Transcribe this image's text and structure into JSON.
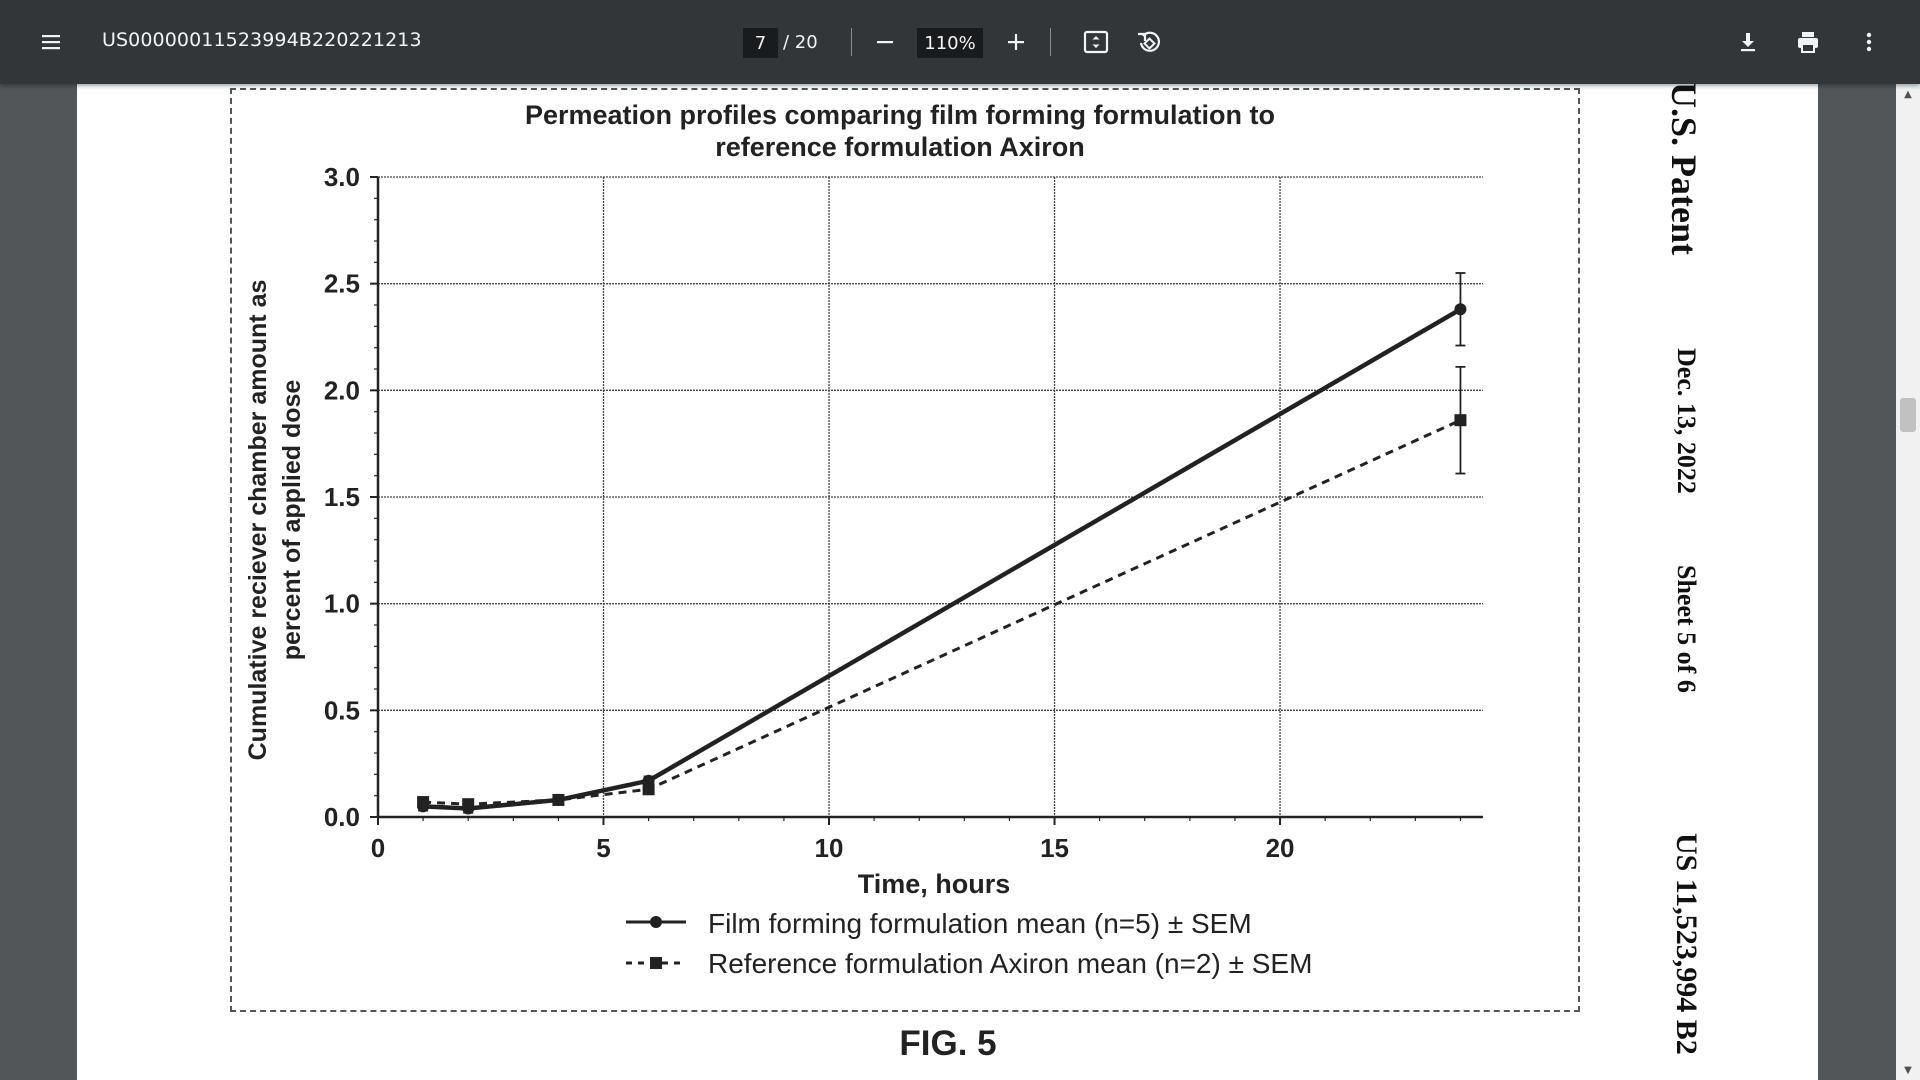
{
  "toolbar": {
    "title": "US00000011523994B220221213",
    "page_current": "7",
    "page_total": "/ 20",
    "zoom": "110%",
    "icons": [
      "menu-icon",
      "minus-icon",
      "plus-icon",
      "fit-page-icon",
      "rotate-icon",
      "download-icon",
      "print-icon",
      "more-vert-icon"
    ]
  },
  "patent_header": {
    "label": "U.S. Patent",
    "date": "Dec. 13, 2022",
    "sheet": "Sheet 5 of 6",
    "number": "US 11,523,994 B2"
  },
  "figure": {
    "caption": "FIG. 5"
  },
  "chart_data": {
    "type": "line",
    "title": "Permeation profiles comparing film forming formulation to reference formulation Axiron",
    "title_lines": [
      "Permeation profiles comparing film forming formulation to",
      "reference formulation Axiron"
    ],
    "xlabel": "Time, hours",
    "ylabel_lines": [
      "Cumulative reciever chamber amount as",
      "percent of applied dose"
    ],
    "xlim": [
      0,
      24.5
    ],
    "ylim": [
      0,
      3.0
    ],
    "xticks": [
      "0",
      "5",
      "10",
      "15",
      "20"
    ],
    "yticks": [
      "0.0",
      "0.5",
      "1.0",
      "1.5",
      "2.0",
      "2.5",
      "3.0"
    ],
    "grid": true,
    "legend_position": "bottom",
    "series": [
      {
        "name": "Film forming formulation mean (n=5) ± SEM",
        "marker": "circle",
        "line": "solid",
        "x": [
          1,
          2,
          4,
          6,
          24
        ],
        "y": [
          0.05,
          0.04,
          0.08,
          0.17,
          2.38
        ],
        "err": [
          0.02,
          0.02,
          0.01,
          0.02,
          0.17
        ]
      },
      {
        "name": "Reference formulation Axiron mean (n=2) ± SEM",
        "marker": "square",
        "line": "dashed",
        "x": [
          1,
          2,
          4,
          6,
          24
        ],
        "y": [
          0.07,
          0.06,
          0.08,
          0.13,
          1.86
        ],
        "err": [
          0.02,
          0.02,
          0.01,
          0.02,
          0.25
        ]
      }
    ]
  }
}
